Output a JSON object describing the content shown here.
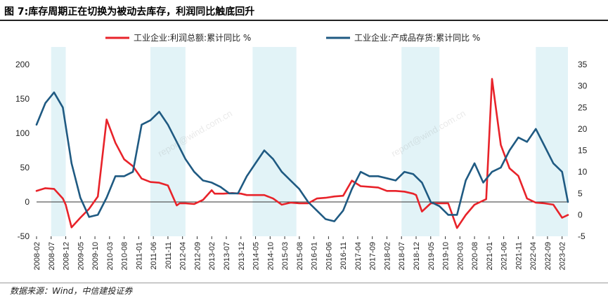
{
  "figure": {
    "title": "图 7:库存周期正在切换为被动去库存，利润同比触底回升",
    "source": "数据来源：Wind，中信建投证券"
  },
  "colors": {
    "profit": "#e8232a",
    "inventory": "#1f5a82",
    "shade": "#e2f3f7",
    "axis": "#333333"
  },
  "chart_data": {
    "type": "line",
    "title": "图 7:库存周期正在切换为被动去库存，利润同比触底回升",
    "legend_position": "top",
    "left_axis": {
      "ylim": [
        -50,
        200
      ],
      "ticks": [
        -50,
        0,
        50,
        100,
        150,
        200
      ]
    },
    "right_axis": {
      "ylim": [
        -5,
        35
      ],
      "ticks": [
        -5,
        0,
        5,
        10,
        15,
        20,
        25,
        30,
        35
      ]
    },
    "x_range": [
      "2008-02",
      "2023-04"
    ],
    "x_ticks": [
      "2008-02",
      "2008-07",
      "2008-12",
      "2009-05",
      "2009-10",
      "2010-03",
      "2010-08",
      "2011-01",
      "2011-06",
      "2011-11",
      "2012-04",
      "2012-09",
      "2013-02",
      "2013-07",
      "2013-12",
      "2014-05",
      "2014-10",
      "2015-03",
      "2015-08",
      "2016-01",
      "2016-06",
      "2016-11",
      "2017-04",
      "2017-09",
      "2018-02",
      "2018-07",
      "2018-12",
      "2019-05",
      "2019-10",
      "2020-03",
      "2020-08",
      "2021-01",
      "2021-06",
      "2021-11",
      "2022-04",
      "2022-09",
      "2023-02"
    ],
    "shaded_periods": [
      [
        "2008-07",
        "2008-12"
      ],
      [
        "2011-05",
        "2012-05"
      ],
      [
        "2014-04",
        "2015-07"
      ],
      [
        "2018-07",
        "2019-08"
      ],
      [
        "2022-05",
        "2023-04"
      ]
    ],
    "series": [
      {
        "name": "工业企业:利润总额:累计同比 %",
        "axis": "left",
        "points": [
          [
            "2008-02",
            16
          ],
          [
            "2008-05",
            20
          ],
          [
            "2008-08",
            19
          ],
          [
            "2008-11",
            5
          ],
          [
            "2008-12",
            -4
          ],
          [
            "2009-02",
            -37
          ],
          [
            "2009-05",
            -23
          ],
          [
            "2009-08",
            -10
          ],
          [
            "2009-11",
            8
          ],
          [
            "2010-02",
            120
          ],
          [
            "2010-05",
            86
          ],
          [
            "2010-08",
            62
          ],
          [
            "2010-11",
            52
          ],
          [
            "2011-02",
            34
          ],
          [
            "2011-05",
            29
          ],
          [
            "2011-08",
            28
          ],
          [
            "2011-11",
            24
          ],
          [
            "2012-02",
            -5
          ],
          [
            "2012-03",
            -2
          ],
          [
            "2012-05",
            -2
          ],
          [
            "2012-08",
            -3
          ],
          [
            "2012-11",
            3
          ],
          [
            "2013-02",
            17
          ],
          [
            "2013-03",
            12
          ],
          [
            "2013-06",
            12
          ],
          [
            "2013-09",
            13
          ],
          [
            "2013-12",
            12
          ],
          [
            "2014-02",
            10
          ],
          [
            "2014-05",
            10
          ],
          [
            "2014-08",
            10
          ],
          [
            "2014-11",
            5
          ],
          [
            "2015-02",
            -4
          ],
          [
            "2015-05",
            -1
          ],
          [
            "2015-08",
            -2
          ],
          [
            "2015-11",
            -2
          ],
          [
            "2016-02",
            5
          ],
          [
            "2016-05",
            6
          ],
          [
            "2016-08",
            8
          ],
          [
            "2016-11",
            9
          ],
          [
            "2017-02",
            31
          ],
          [
            "2017-05",
            23
          ],
          [
            "2017-08",
            22
          ],
          [
            "2017-11",
            21
          ],
          [
            "2018-02",
            16
          ],
          [
            "2018-05",
            16
          ],
          [
            "2018-08",
            15
          ],
          [
            "2018-11",
            12
          ],
          [
            "2018-12",
            10
          ],
          [
            "2019-02",
            -14
          ],
          [
            "2019-05",
            -2
          ],
          [
            "2019-08",
            -2
          ],
          [
            "2019-11",
            -2
          ],
          [
            "2020-02",
            -38
          ],
          [
            "2020-05",
            -19
          ],
          [
            "2020-08",
            -4
          ],
          [
            "2020-11",
            2
          ],
          [
            "2020-12",
            4
          ],
          [
            "2021-02",
            179
          ],
          [
            "2021-05",
            83
          ],
          [
            "2021-08",
            49
          ],
          [
            "2021-11",
            38
          ],
          [
            "2022-02",
            5
          ],
          [
            "2022-05",
            -1
          ],
          [
            "2022-08",
            -2
          ],
          [
            "2022-11",
            -4
          ],
          [
            "2023-02",
            -23
          ],
          [
            "2023-04",
            -19
          ]
        ]
      },
      {
        "name": "工业企业:产成品存货:累计同比 %",
        "axis": "right",
        "points": [
          [
            "2008-02",
            21
          ],
          [
            "2008-05",
            26
          ],
          [
            "2008-08",
            28.5
          ],
          [
            "2008-11",
            25
          ],
          [
            "2009-02",
            12
          ],
          [
            "2009-05",
            4
          ],
          [
            "2009-08",
            -0.5
          ],
          [
            "2009-11",
            0
          ],
          [
            "2010-02",
            4
          ],
          [
            "2010-05",
            9
          ],
          [
            "2010-08",
            9
          ],
          [
            "2010-11",
            10
          ],
          [
            "2011-02",
            21
          ],
          [
            "2011-05",
            22
          ],
          [
            "2011-08",
            24
          ],
          [
            "2011-11",
            21
          ],
          [
            "2012-02",
            17
          ],
          [
            "2012-05",
            13
          ],
          [
            "2012-08",
            10
          ],
          [
            "2012-11",
            8
          ],
          [
            "2013-02",
            7.5
          ],
          [
            "2013-05",
            6.5
          ],
          [
            "2013-08",
            5
          ],
          [
            "2013-11",
            5
          ],
          [
            "2014-02",
            9
          ],
          [
            "2014-05",
            12
          ],
          [
            "2014-08",
            15
          ],
          [
            "2014-11",
            13
          ],
          [
            "2015-02",
            10
          ],
          [
            "2015-05",
            8
          ],
          [
            "2015-08",
            6
          ],
          [
            "2015-11",
            3
          ],
          [
            "2016-02",
            1
          ],
          [
            "2016-05",
            -1
          ],
          [
            "2016-08",
            -1.5
          ],
          [
            "2016-11",
            1
          ],
          [
            "2017-02",
            6
          ],
          [
            "2017-05",
            10
          ],
          [
            "2017-08",
            9
          ],
          [
            "2017-11",
            9
          ],
          [
            "2018-02",
            8.5
          ],
          [
            "2018-05",
            8
          ],
          [
            "2018-08",
            10
          ],
          [
            "2018-11",
            9.5
          ],
          [
            "2019-02",
            7.5
          ],
          [
            "2019-05",
            3
          ],
          [
            "2019-08",
            2
          ],
          [
            "2019-11",
            0
          ],
          [
            "2020-02",
            0
          ],
          [
            "2020-05",
            8
          ],
          [
            "2020-08",
            12
          ],
          [
            "2020-11",
            7.5
          ],
          [
            "2021-02",
            10
          ],
          [
            "2021-05",
            11
          ],
          [
            "2021-08",
            15
          ],
          [
            "2021-11",
            18
          ],
          [
            "2022-02",
            17
          ],
          [
            "2022-05",
            20
          ],
          [
            "2022-08",
            16
          ],
          [
            "2022-11",
            12
          ],
          [
            "2023-02",
            10
          ],
          [
            "2023-04",
            3
          ]
        ]
      }
    ]
  }
}
